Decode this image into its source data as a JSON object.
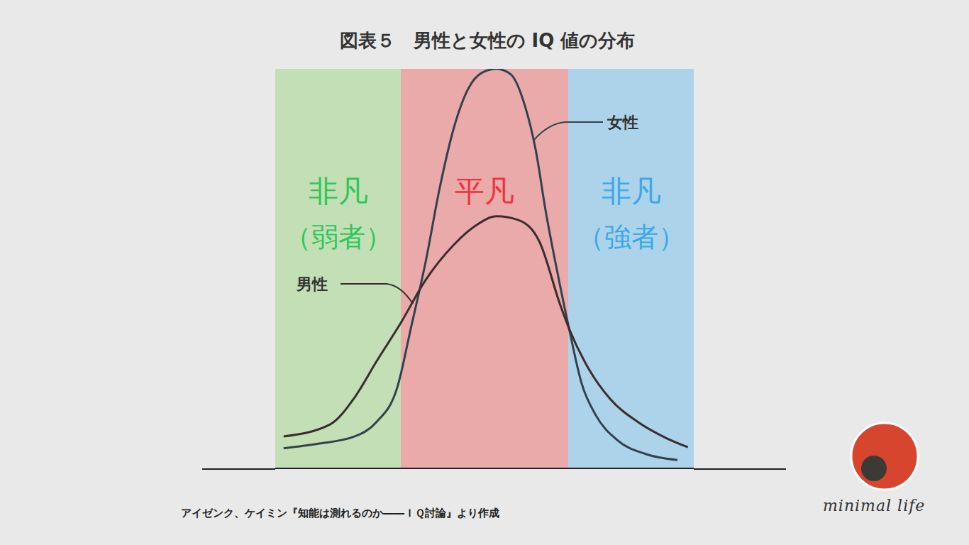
{
  "chart_data": {
    "type": "line",
    "title": "図表５　男性と女性の IQ 値の分布",
    "source": "アイゼンク、ケイミン『知能は測れるのか――ＩＱ討論』より作成",
    "watermark": "minimal life",
    "xlim": [
      0,
      100
    ],
    "ylim": [
      0,
      100
    ],
    "tick_labels": false,
    "grid": false,
    "bands": [
      {
        "label": "非凡",
        "sublabel": "（弱者）",
        "x": [
          0,
          30
        ],
        "color": "#c3dfb5",
        "label_color": "#2fc65a"
      },
      {
        "label": "平凡",
        "x": [
          30,
          70
        ],
        "color": "#e9aaa9",
        "label_color": "#f0323c"
      },
      {
        "label": "非凡",
        "sublabel": "（強者）",
        "x": [
          70,
          100
        ],
        "color": "#acd3ea",
        "label_color": "#3aa8e8"
      }
    ],
    "series": [
      {
        "name": "女性",
        "color": "#33414f",
        "x": [
          2.0,
          10.5,
          19.0,
          24.1,
          29.2,
          32.5,
          35.9,
          39.3,
          42.7,
          46.1,
          49.5,
          52.9,
          56.3,
          59.7,
          62.2,
          64.7,
          67.3,
          70.2,
          73.2,
          76.6,
          81.7,
          88.5,
          96.1
        ],
        "values": [
          5.0,
          6.2,
          8.0,
          11.5,
          20.4,
          35.5,
          51.5,
          70.2,
          85.3,
          95.0,
          99.1,
          100,
          98.6,
          90.6,
          79.9,
          63.9,
          49.7,
          35.0,
          21.3,
          13.3,
          7.1,
          3.6,
          2.1
        ]
      },
      {
        "name": "男性",
        "color": "#3b2d2f",
        "x": [
          2.0,
          13.1,
          19.0,
          24.1,
          30.0,
          35.9,
          42.7,
          47.8,
          52.9,
          58.0,
          63.1,
          68.1,
          70.2,
          74.9,
          80.0,
          86.8,
          93.6,
          98.6
        ],
        "values": [
          8.0,
          11.0,
          17.8,
          26.6,
          36.4,
          47.1,
          56.0,
          60.7,
          63.1,
          62.2,
          56.8,
          40.9,
          35.0,
          24.9,
          17.4,
          11.5,
          7.5,
          5.3
        ]
      }
    ]
  }
}
